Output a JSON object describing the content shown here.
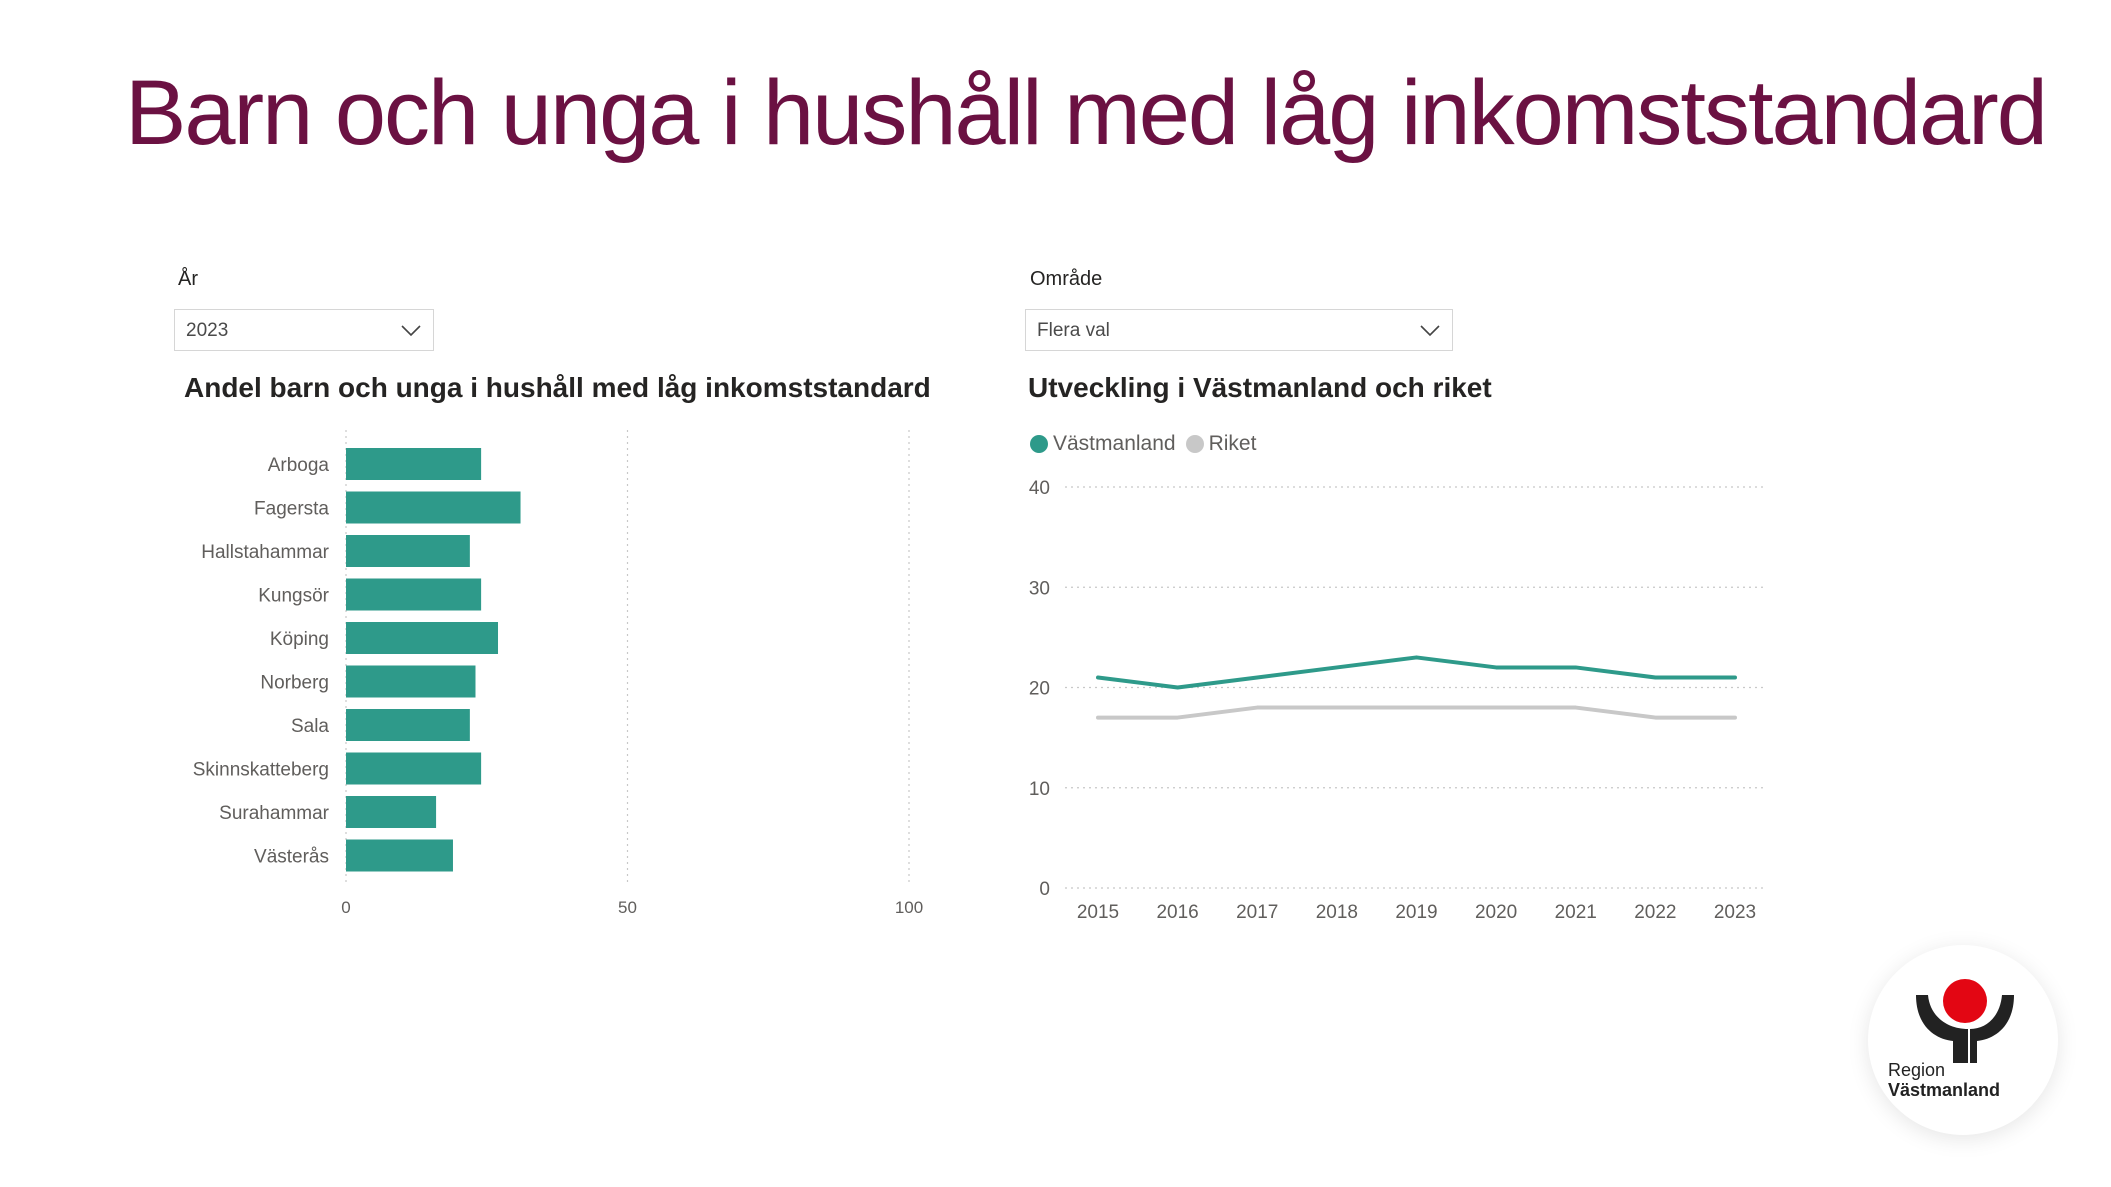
{
  "page": {
    "title": "Barn och unga i hushåll med låg inkomststandard"
  },
  "filters": {
    "year": {
      "label": "År",
      "value": "2023"
    },
    "area": {
      "label": "Område",
      "value": "Flera val"
    }
  },
  "colors": {
    "title": "#6b1142",
    "bar": "#2e9a8a",
    "vastmanland": "#2e9a8a",
    "riket": "#c8c8c8",
    "logo_red": "#e30613",
    "logo_dark": "#222222"
  },
  "logo": {
    "line1": "Region",
    "line2": "Västmanland"
  },
  "chart_data": [
    {
      "type": "bar",
      "orientation": "horizontal",
      "title": "Andel barn och unga i hushåll med låg inkomststandard",
      "categories": [
        "Arboga",
        "Fagersta",
        "Hallstahammar",
        "Kungsör",
        "Köping",
        "Norberg",
        "Sala",
        "Skinnskatteberg",
        "Surahammar",
        "Västerås"
      ],
      "values": [
        24,
        31,
        22,
        24,
        27,
        23,
        22,
        24,
        16,
        19
      ],
      "xlim": [
        0,
        100
      ],
      "xticks": [
        0,
        50,
        100
      ],
      "grid": true
    },
    {
      "type": "line",
      "title": "Utveckling i Västmanland och riket",
      "x": [
        "2015",
        "2016",
        "2017",
        "2018",
        "2019",
        "2020",
        "2021",
        "2022",
        "2023"
      ],
      "series": [
        {
          "name": "Västmanland",
          "values": [
            21,
            20,
            21,
            22,
            23,
            22,
            22,
            21,
            21
          ]
        },
        {
          "name": "Riket",
          "values": [
            17,
            17,
            18,
            18,
            18,
            18,
            18,
            17,
            17
          ]
        }
      ],
      "ylim": [
        0,
        40
      ],
      "yticks": [
        0,
        10,
        20,
        30,
        40
      ],
      "legend": "top-left",
      "grid": true
    }
  ]
}
